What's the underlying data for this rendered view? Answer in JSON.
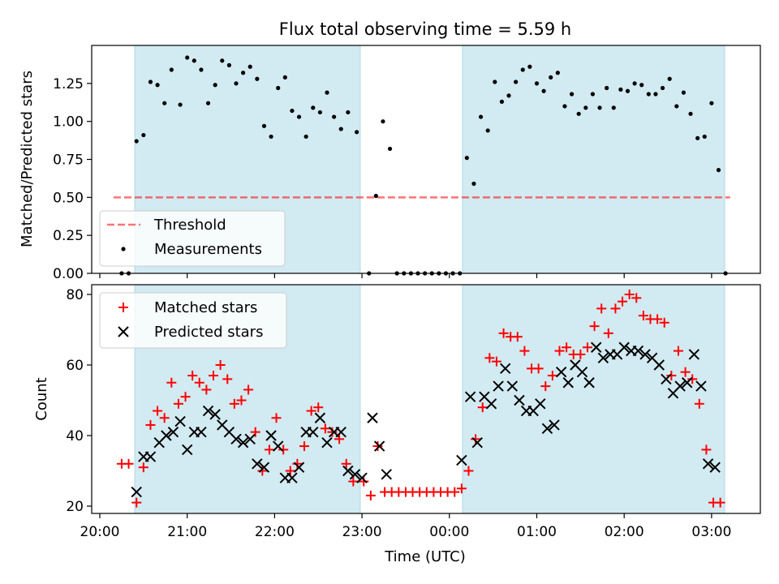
{
  "figure": {
    "title": "Flux total observing time = 5.59 h",
    "xlabel": "Time (UTC)"
  },
  "colors": {
    "shade": "#add8e6",
    "threshold": "#ff0000",
    "matched": "#ff0000",
    "predicted": "#000000",
    "measure": "#000000"
  },
  "chart_data": [
    {
      "type": "scatter",
      "ylabel": "Matched/Predicted stars",
      "ylim": [
        0,
        1.5
      ],
      "yticks": [
        "0.00",
        "0.25",
        "0.50",
        "0.75",
        "1.00",
        "1.25"
      ],
      "x_unit": "hours since 20:00 UTC (x axis shows clock time)",
      "xlim": [
        -0.1,
        7.08
      ],
      "shaded_intervals": [
        [
          0.4,
          2.98
        ],
        [
          4.15,
          7.15
        ]
      ],
      "threshold": {
        "y": 0.5,
        "x_range": [
          0.25,
          7.25
        ]
      },
      "legend": {
        "position": "lower-left",
        "entries": [
          "Threshold",
          "Measurements"
        ]
      },
      "series": [
        {
          "name": "Measurements",
          "points": [
            [
              0.25,
              0
            ],
            [
              0.33,
              0
            ],
            [
              0.42,
              0.87
            ],
            [
              0.5,
              0.91
            ],
            [
              0.58,
              1.26
            ],
            [
              0.66,
              1.24
            ],
            [
              0.74,
              1.12
            ],
            [
              0.82,
              1.34
            ],
            [
              0.92,
              1.11
            ],
            [
              1.0,
              1.42
            ],
            [
              1.08,
              1.4
            ],
            [
              1.16,
              1.34
            ],
            [
              1.24,
              1.12
            ],
            [
              1.32,
              1.24
            ],
            [
              1.4,
              1.4
            ],
            [
              1.48,
              1.37
            ],
            [
              1.56,
              1.25
            ],
            [
              1.64,
              1.32
            ],
            [
              1.72,
              1.36
            ],
            [
              1.8,
              1.28
            ],
            [
              1.88,
              0.97
            ],
            [
              1.96,
              0.9
            ],
            [
              2.04,
              1.22
            ],
            [
              2.12,
              1.29
            ],
            [
              2.2,
              1.07
            ],
            [
              2.28,
              1.03
            ],
            [
              2.36,
              0.9
            ],
            [
              2.44,
              1.09
            ],
            [
              2.52,
              1.06
            ],
            [
              2.6,
              1.19
            ],
            [
              2.68,
              1.03
            ],
            [
              2.76,
              0.95
            ],
            [
              2.84,
              1.06
            ],
            [
              2.94,
              0.93
            ],
            [
              3.08,
              0
            ],
            [
              3.16,
              0.51
            ],
            [
              3.24,
              1.0
            ],
            [
              3.32,
              0.82
            ],
            [
              3.4,
              0
            ],
            [
              3.48,
              0
            ],
            [
              3.56,
              0
            ],
            [
              3.64,
              0
            ],
            [
              3.72,
              0
            ],
            [
              3.8,
              0
            ],
            [
              3.88,
              0
            ],
            [
              3.96,
              0
            ],
            [
              4.04,
              0
            ],
            [
              4.12,
              0
            ],
            [
              4.2,
              0.76
            ],
            [
              4.28,
              0.59
            ],
            [
              4.36,
              1.03
            ],
            [
              4.44,
              0.94
            ],
            [
              4.52,
              1.26
            ],
            [
              4.6,
              1.13
            ],
            [
              4.68,
              1.17
            ],
            [
              4.76,
              1.26
            ],
            [
              4.84,
              1.34
            ],
            [
              4.92,
              1.36
            ],
            [
              5.0,
              1.25
            ],
            [
              5.08,
              1.2
            ],
            [
              5.16,
              1.29
            ],
            [
              5.24,
              1.32
            ],
            [
              5.32,
              1.1
            ],
            [
              5.4,
              1.18
            ],
            [
              5.48,
              1.05
            ],
            [
              5.56,
              1.09
            ],
            [
              5.64,
              1.18
            ],
            [
              5.72,
              1.09
            ],
            [
              5.8,
              1.22
            ],
            [
              5.88,
              1.09
            ],
            [
              5.96,
              1.21
            ],
            [
              6.04,
              1.2
            ],
            [
              6.12,
              1.25
            ],
            [
              6.2,
              1.24
            ],
            [
              6.28,
              1.18
            ],
            [
              6.36,
              1.18
            ],
            [
              6.44,
              1.22
            ],
            [
              6.52,
              1.28
            ],
            [
              6.6,
              1.1
            ],
            [
              6.68,
              1.19
            ],
            [
              6.76,
              1.05
            ],
            [
              6.84,
              0.89
            ],
            [
              6.92,
              0.9
            ],
            [
              7.0,
              1.12
            ],
            [
              7.08,
              0.68
            ],
            [
              7.16,
              0
            ]
          ]
        }
      ]
    },
    {
      "type": "scatter",
      "ylabel": "Count",
      "ylim": [
        18,
        82
      ],
      "yticks": [
        "20",
        "40",
        "60",
        "80"
      ],
      "xticks": [
        "20:00",
        "21:00",
        "22:00",
        "23:00",
        "00:00",
        "01:00",
        "02:00",
        "03:00"
      ],
      "legend": {
        "position": "upper-left",
        "entries": [
          "Matched stars",
          "Predicted stars"
        ]
      },
      "series": [
        {
          "name": "Matched stars",
          "marker": "plus",
          "points": [
            [
              0.25,
              32
            ],
            [
              0.33,
              32
            ],
            [
              0.42,
              21
            ],
            [
              0.5,
              31
            ],
            [
              0.58,
              43
            ],
            [
              0.66,
              47
            ],
            [
              0.74,
              45
            ],
            [
              0.82,
              55
            ],
            [
              0.9,
              49
            ],
            [
              0.98,
              51
            ],
            [
              1.06,
              57
            ],
            [
              1.14,
              55
            ],
            [
              1.22,
              53
            ],
            [
              1.3,
              57
            ],
            [
              1.38,
              60
            ],
            [
              1.46,
              56
            ],
            [
              1.54,
              49
            ],
            [
              1.62,
              50
            ],
            [
              1.7,
              53
            ],
            [
              1.78,
              41
            ],
            [
              1.86,
              30
            ],
            [
              1.94,
              36
            ],
            [
              2.02,
              45
            ],
            [
              2.1,
              36
            ],
            [
              2.18,
              30
            ],
            [
              2.26,
              32
            ],
            [
              2.34,
              37
            ],
            [
              2.42,
              47
            ],
            [
              2.5,
              48
            ],
            [
              2.58,
              42
            ],
            [
              2.66,
              41
            ],
            [
              2.74,
              39
            ],
            [
              2.82,
              32
            ],
            [
              2.9,
              27
            ],
            [
              3.02,
              27
            ],
            [
              3.1,
              23
            ],
            [
              3.18,
              37
            ],
            [
              3.26,
              24
            ],
            [
              3.34,
              24
            ],
            [
              3.42,
              24
            ],
            [
              3.5,
              24
            ],
            [
              3.58,
              24
            ],
            [
              3.66,
              24
            ],
            [
              3.74,
              24
            ],
            [
              3.82,
              24
            ],
            [
              3.9,
              24
            ],
            [
              3.98,
              24
            ],
            [
              4.06,
              24
            ],
            [
              4.14,
              25
            ],
            [
              4.22,
              30
            ],
            [
              4.3,
              39
            ],
            [
              4.38,
              48
            ],
            [
              4.46,
              62
            ],
            [
              4.54,
              61
            ],
            [
              4.62,
              69
            ],
            [
              4.7,
              68
            ],
            [
              4.78,
              68
            ],
            [
              4.86,
              64
            ],
            [
              4.94,
              59
            ],
            [
              5.02,
              59
            ],
            [
              5.1,
              54
            ],
            [
              5.18,
              57
            ],
            [
              5.26,
              64
            ],
            [
              5.34,
              65
            ],
            [
              5.42,
              63
            ],
            [
              5.5,
              63
            ],
            [
              5.58,
              65
            ],
            [
              5.66,
              71
            ],
            [
              5.74,
              76
            ],
            [
              5.82,
              69
            ],
            [
              5.9,
              76
            ],
            [
              5.98,
              78
            ],
            [
              6.06,
              80
            ],
            [
              6.14,
              79
            ],
            [
              6.22,
              74
            ],
            [
              6.3,
              73
            ],
            [
              6.38,
              73
            ],
            [
              6.46,
              72
            ],
            [
              6.54,
              57
            ],
            [
              6.62,
              64
            ],
            [
              6.7,
              58
            ],
            [
              6.78,
              56
            ],
            [
              6.86,
              49
            ],
            [
              6.94,
              36
            ],
            [
              7.02,
              21
            ],
            [
              7.1,
              21
            ]
          ]
        },
        {
          "name": "Predicted stars",
          "marker": "x",
          "points": [
            [
              0.42,
              24
            ],
            [
              0.5,
              34
            ],
            [
              0.58,
              34
            ],
            [
              0.68,
              38
            ],
            [
              0.76,
              40
            ],
            [
              0.84,
              41
            ],
            [
              0.92,
              44
            ],
            [
              1.0,
              36
            ],
            [
              1.08,
              41
            ],
            [
              1.16,
              41
            ],
            [
              1.24,
              47
            ],
            [
              1.32,
              46
            ],
            [
              1.4,
              43
            ],
            [
              1.48,
              41
            ],
            [
              1.56,
              39
            ],
            [
              1.64,
              38
            ],
            [
              1.72,
              39
            ],
            [
              1.8,
              32
            ],
            [
              1.88,
              31
            ],
            [
              1.96,
              40
            ],
            [
              2.04,
              37
            ],
            [
              2.12,
              28
            ],
            [
              2.2,
              28
            ],
            [
              2.28,
              31
            ],
            [
              2.36,
              41
            ],
            [
              2.44,
              41
            ],
            [
              2.52,
              45
            ],
            [
              2.6,
              38
            ],
            [
              2.68,
              41
            ],
            [
              2.76,
              41
            ],
            [
              2.84,
              30
            ],
            [
              2.92,
              29
            ],
            [
              3.0,
              28
            ],
            [
              3.12,
              45
            ],
            [
              3.2,
              37
            ],
            [
              3.28,
              29
            ],
            [
              4.14,
              33
            ],
            [
              4.24,
              51
            ],
            [
              4.32,
              38
            ],
            [
              4.4,
              51
            ],
            [
              4.48,
              49
            ],
            [
              4.56,
              54
            ],
            [
              4.64,
              59
            ],
            [
              4.72,
              54
            ],
            [
              4.8,
              50
            ],
            [
              4.88,
              47
            ],
            [
              4.96,
              47
            ],
            [
              5.04,
              49
            ],
            [
              5.12,
              42
            ],
            [
              5.2,
              43
            ],
            [
              5.28,
              58
            ],
            [
              5.36,
              55
            ],
            [
              5.44,
              60
            ],
            [
              5.52,
              58
            ],
            [
              5.6,
              55
            ],
            [
              5.68,
              65
            ],
            [
              5.76,
              62
            ],
            [
              5.84,
              63
            ],
            [
              5.92,
              63
            ],
            [
              6.0,
              65
            ],
            [
              6.08,
              64
            ],
            [
              6.16,
              64
            ],
            [
              6.24,
              63
            ],
            [
              6.32,
              62
            ],
            [
              6.4,
              60
            ],
            [
              6.48,
              56
            ],
            [
              6.56,
              52
            ],
            [
              6.64,
              54
            ],
            [
              6.72,
              55
            ],
            [
              6.8,
              63
            ],
            [
              6.88,
              54
            ],
            [
              6.96,
              32
            ],
            [
              7.04,
              31
            ]
          ]
        }
      ]
    }
  ]
}
